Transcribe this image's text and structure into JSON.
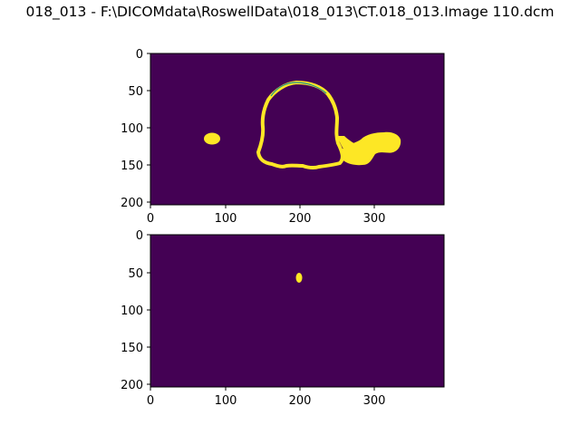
{
  "figure": {
    "title": "018_013 - F:\\DICOMdata\\RoswellData\\018_013\\CT.018_013.Image 110.dcm"
  },
  "colors": {
    "background": "#440154",
    "mask": "#fde725",
    "edge_teal": "#21918c"
  },
  "chart_data": [
    {
      "type": "heatmap",
      "title": "",
      "xlabel": "",
      "ylabel": "",
      "xlim": [
        0,
        394
      ],
      "ylim": [
        202,
        0
      ],
      "xticks": [
        "0",
        "100",
        "200",
        "300"
      ],
      "yticks": [
        "0",
        "50",
        "100",
        "150",
        "200"
      ],
      "colormap": "viridis",
      "values_range": [
        0,
        1
      ],
      "description_values": "binary mask: ring contour around a central region, a small blob near x=80 y=115, and a larger blob near x=325 y=125"
    },
    {
      "type": "heatmap",
      "title": "",
      "xlabel": "",
      "ylabel": "",
      "xlim": [
        0,
        394
      ],
      "ylim": [
        202,
        0
      ],
      "xticks": [
        "0",
        "100",
        "200",
        "300"
      ],
      "yticks": [
        "0",
        "50",
        "100",
        "150",
        "200"
      ],
      "colormap": "viridis",
      "values_range": [
        0,
        1
      ],
      "description_values": "binary mask: single small blob near x=198 y=57"
    }
  ]
}
